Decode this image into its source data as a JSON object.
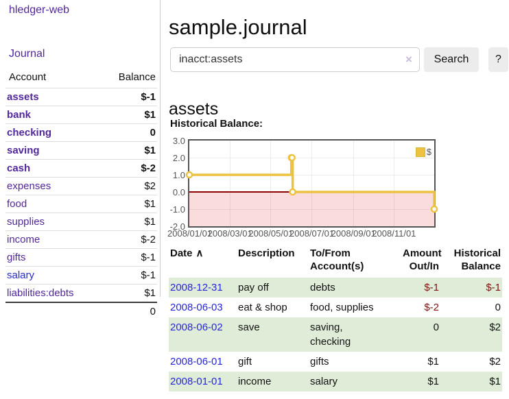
{
  "app": {
    "title": "hledger-web"
  },
  "sidebar": {
    "nav": {
      "journal_label": "Journal"
    },
    "table": {
      "headers": {
        "account": "Account",
        "balance": "Balance"
      },
      "accounts": [
        {
          "name": "assets",
          "balance": "$-1",
          "level": 1,
          "bold": true,
          "balance_tone": "negative-strong"
        },
        {
          "name": "bank",
          "balance": "$1",
          "level": 2,
          "bold": true,
          "balance_tone": "normal"
        },
        {
          "name": "checking",
          "balance": "0",
          "level": 3,
          "bold": true,
          "balance_tone": "normal"
        },
        {
          "name": "saving",
          "balance": "$1",
          "level": 3,
          "bold": true,
          "balance_tone": "normal"
        },
        {
          "name": "cash",
          "balance": "$-2",
          "level": 2,
          "bold": true,
          "balance_tone": "negative-strong"
        },
        {
          "name": "expenses",
          "balance": "$2",
          "level": 1,
          "bold": false,
          "balance_tone": "normal"
        },
        {
          "name": "food",
          "balance": "$1",
          "level": 2,
          "bold": false,
          "balance_tone": "normal"
        },
        {
          "name": "supplies",
          "balance": "$1",
          "level": 2,
          "bold": false,
          "balance_tone": "normal"
        },
        {
          "name": "income",
          "balance": "$-2",
          "level": 1,
          "bold": false,
          "balance_tone": "negative-light"
        },
        {
          "name": "gifts",
          "balance": "$-1",
          "level": 2,
          "bold": false,
          "balance_tone": "negative-light"
        },
        {
          "name": "salary",
          "balance": "$-1",
          "level": 2,
          "bold": false,
          "balance_tone": "negative-light",
          "link_tone": "blue"
        },
        {
          "name": "liabilities:debts",
          "balance": "$1",
          "level": 1,
          "bold": false,
          "balance_tone": "normal"
        }
      ],
      "total": "0"
    }
  },
  "header": {
    "title": "sample.journal",
    "search": {
      "value": "inacct:assets",
      "clear_icon": "×",
      "button_label": "Search",
      "help_label": "?"
    }
  },
  "account_page": {
    "heading": "assets",
    "chart_label": "Historical Balance:"
  },
  "chart_data": {
    "type": "line",
    "title": "Historical Balance",
    "steps": true,
    "series": [
      {
        "name": "$",
        "color": "#edc240",
        "points": [
          [
            "2008-01-01",
            1
          ],
          [
            "2008-06-01",
            2
          ],
          [
            "2008-06-02",
            2
          ],
          [
            "2008-06-03",
            0
          ],
          [
            "2008-12-31",
            -1
          ]
        ]
      }
    ],
    "xrange": [
      "2008-01-01",
      "2008-12-31"
    ],
    "ylim": [
      -2,
      3
    ],
    "yticks": [
      "3.0",
      "2.0",
      "1.0",
      "0.0",
      "-1.0",
      "-2.0"
    ],
    "xticks": [
      "2008/01/01",
      "2008/03/01",
      "2008/05/01",
      "2008/07/01",
      "2008/09/01",
      "2008/11/01"
    ],
    "legend": {
      "position": "top-right",
      "label": "$"
    },
    "negative_region_color": "#fbdcdc",
    "zero_line_color": "#8b0000",
    "grid": true
  },
  "register": {
    "headers": {
      "date": "Date",
      "sort_icon": "∧",
      "description": "Description",
      "account": "To/From\nAccount(s)",
      "amount": "Amount\nOut/In",
      "balance": "Historical\nBalance"
    },
    "rows": [
      {
        "date": "2008-12-31",
        "description": "pay off",
        "accounts": "debts",
        "amount": "$-1",
        "balance": "$-1"
      },
      {
        "date": "2008-06-03",
        "description": "eat & shop",
        "accounts": "food, supplies",
        "amount": "$-2",
        "balance": "0"
      },
      {
        "date": "2008-06-02",
        "description": "save",
        "accounts": "saving,\nchecking",
        "amount": "0",
        "balance": "$2"
      },
      {
        "date": "2008-06-01",
        "description": "gift",
        "accounts": "gifts",
        "amount": "$1",
        "balance": "$2"
      },
      {
        "date": "2008-01-01",
        "description": "income",
        "accounts": "salary",
        "amount": "$1",
        "balance": "$1"
      }
    ]
  },
  "colors": {
    "link_purple": "#51279b",
    "link_blue": "#2727d8",
    "negative_strong": "#7e1313",
    "negative_light": "#c98585",
    "row_green": "#dfecd7",
    "series_yellow": "#edc240",
    "negative_region_pink": "#fbdcdc",
    "zero_line_red": "#8b0000",
    "button_gray": "#ececec"
  }
}
